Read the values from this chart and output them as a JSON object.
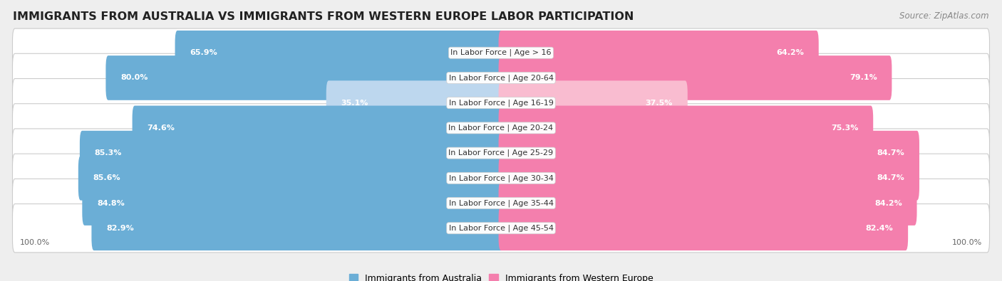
{
  "title": "IMMIGRANTS FROM AUSTRALIA VS IMMIGRANTS FROM WESTERN EUROPE LABOR PARTICIPATION",
  "source": "Source: ZipAtlas.com",
  "categories": [
    "In Labor Force | Age > 16",
    "In Labor Force | Age 20-64",
    "In Labor Force | Age 16-19",
    "In Labor Force | Age 20-24",
    "In Labor Force | Age 25-29",
    "In Labor Force | Age 30-34",
    "In Labor Force | Age 35-44",
    "In Labor Force | Age 45-54"
  ],
  "australia_values": [
    65.9,
    80.0,
    35.1,
    74.6,
    85.3,
    85.6,
    84.8,
    82.9
  ],
  "western_europe_values": [
    64.2,
    79.1,
    37.5,
    75.3,
    84.7,
    84.7,
    84.2,
    82.4
  ],
  "australia_color": "#6baed6",
  "australia_color_light": "#bdd7ee",
  "western_europe_color": "#f47fad",
  "western_europe_color_light": "#f9bcd0",
  "label_australia": "Immigrants from Australia",
  "label_western_europe": "Immigrants from Western Europe",
  "background_color": "#eeeeee",
  "row_bg_color": "#ffffff",
  "title_fontsize": 11.5,
  "source_fontsize": 8.5,
  "cat_fontsize": 8,
  "value_fontsize": 8,
  "axis_label_fontsize": 8,
  "legend_fontsize": 9
}
